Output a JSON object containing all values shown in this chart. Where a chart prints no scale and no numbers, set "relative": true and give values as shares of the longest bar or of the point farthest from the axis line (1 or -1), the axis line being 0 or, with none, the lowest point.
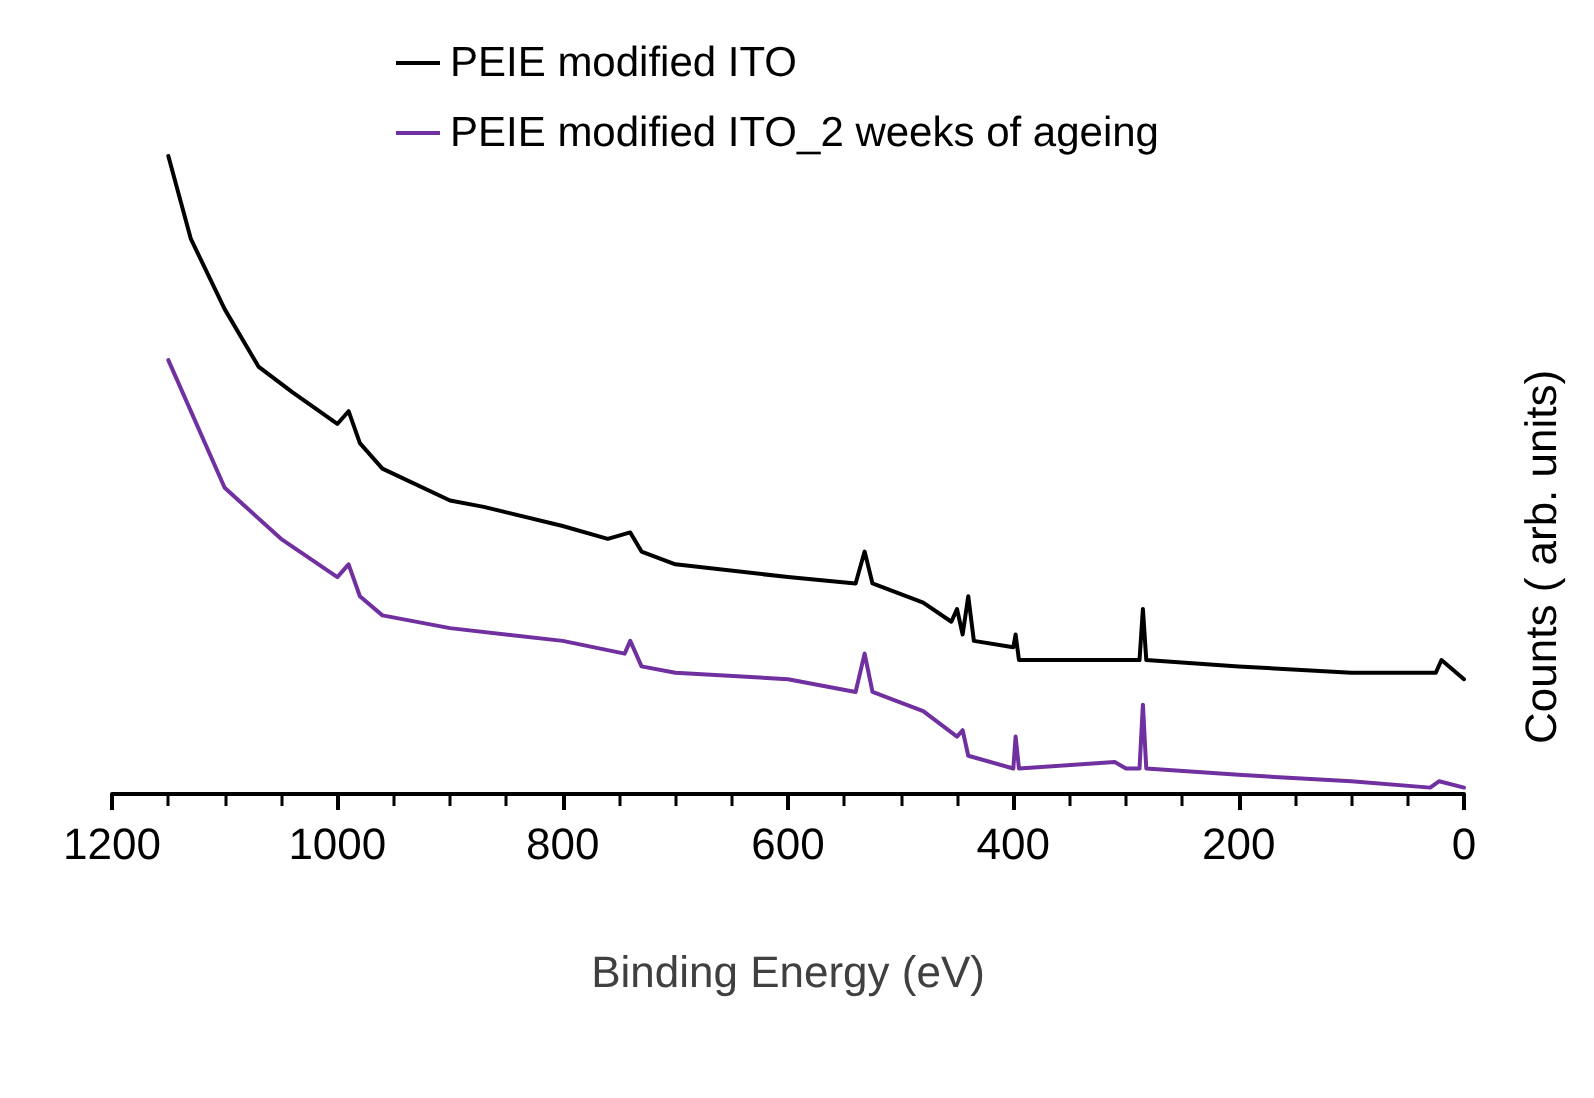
{
  "chart_data": {
    "type": "line",
    "relative": true,
    "xlabel": "Binding Energy (eV)",
    "ylabel": "Counts ( arb. units)",
    "xlim": [
      1200,
      0
    ],
    "xticks": [
      1200,
      1000,
      800,
      600,
      400,
      200,
      0
    ],
    "legend": "top",
    "grid": false,
    "marker": "none",
    "line_style": "solid",
    "series": [
      {
        "name": "PEIE modified ITO",
        "color": "#000000",
        "x": [
          1150,
          1130,
          1100,
          1070,
          1040,
          1000,
          990,
          980,
          960,
          900,
          870,
          800,
          760,
          740,
          730,
          700,
          600,
          540,
          532,
          525,
          480,
          455,
          450,
          445,
          440,
          435,
          400,
          398,
          395,
          300,
          288,
          285,
          282,
          200,
          100,
          25,
          20,
          0
        ],
        "values": [
          1.0,
          0.87,
          0.76,
          0.67,
          0.63,
          0.58,
          0.6,
          0.55,
          0.51,
          0.46,
          0.45,
          0.42,
          0.4,
          0.41,
          0.38,
          0.36,
          0.34,
          0.33,
          0.38,
          0.33,
          0.3,
          0.27,
          0.29,
          0.25,
          0.31,
          0.24,
          0.23,
          0.25,
          0.21,
          0.21,
          0.21,
          0.29,
          0.21,
          0.2,
          0.19,
          0.19,
          0.21,
          0.18
        ]
      },
      {
        "name": "PEIE modified ITO_2 weeks of ageing",
        "color": "#7030a0",
        "x": [
          1150,
          1100,
          1050,
          1000,
          990,
          980,
          960,
          900,
          800,
          745,
          740,
          730,
          700,
          600,
          540,
          532,
          525,
          480,
          450,
          445,
          440,
          400,
          398,
          395,
          310,
          300,
          288,
          285,
          282,
          200,
          100,
          30,
          22,
          0
        ],
        "values": [
          0.68,
          0.48,
          0.4,
          0.34,
          0.36,
          0.31,
          0.28,
          0.26,
          0.24,
          0.22,
          0.24,
          0.2,
          0.19,
          0.18,
          0.16,
          0.22,
          0.16,
          0.13,
          0.09,
          0.1,
          0.06,
          0.04,
          0.09,
          0.04,
          0.05,
          0.04,
          0.04,
          0.14,
          0.04,
          0.03,
          0.02,
          0.01,
          0.02,
          0.01
        ]
      }
    ]
  }
}
